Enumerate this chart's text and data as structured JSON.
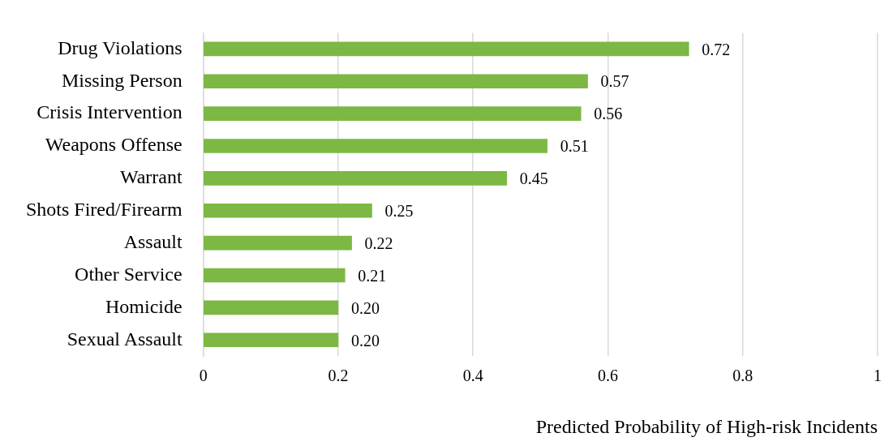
{
  "chart_data": {
    "type": "bar",
    "orientation": "horizontal",
    "xlabel": "Predicted Probability of High-risk Incidents",
    "categories": [
      "Drug Violations",
      "Missing Person",
      "Crisis Intervention",
      "Weapons Offense",
      "Warrant",
      "Shots Fired/Firearm",
      "Assault",
      "Other Service",
      "Homicide",
      "Sexual Assault"
    ],
    "values": [
      0.72,
      0.57,
      0.56,
      0.51,
      0.45,
      0.25,
      0.22,
      0.21,
      0.2,
      0.2
    ],
    "value_labels": [
      "0.72",
      "0.57",
      "0.56",
      "0.51",
      "0.45",
      "0.25",
      "0.22",
      "0.21",
      "0.20",
      "0.20"
    ],
    "color": "#7cb843",
    "xlim": [
      0,
      1
    ],
    "xticks": [
      0,
      0.2,
      0.4,
      0.6,
      0.8,
      1
    ],
    "grid": "x",
    "legend": false
  }
}
